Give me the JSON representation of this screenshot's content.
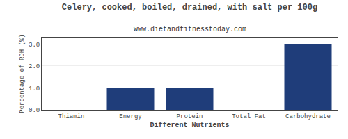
{
  "chart_data": {
    "type": "bar",
    "title": "Celery, cooked, boiled, drained, with salt per 100g",
    "subtitle": "www.dietandfitnesstoday.com",
    "xlabel": "Different Nutrients",
    "ylabel": "Percentage of RDH (%)",
    "categories": [
      "Thiamin",
      "Energy",
      "Protein",
      "Total Fat",
      "Carbohydrate"
    ],
    "values": [
      0.0,
      1.0,
      1.0,
      0.0,
      3.0
    ],
    "color": "#1f3d7a",
    "ylim": [
      0,
      3.3
    ],
    "yticks": [
      {
        "value": 0.0,
        "label": "0.0"
      },
      {
        "value": 1.0,
        "label": "1.0"
      },
      {
        "value": 2.0,
        "label": "2.0"
      },
      {
        "value": 3.0,
        "label": "3.0"
      }
    ],
    "grid": true
  }
}
